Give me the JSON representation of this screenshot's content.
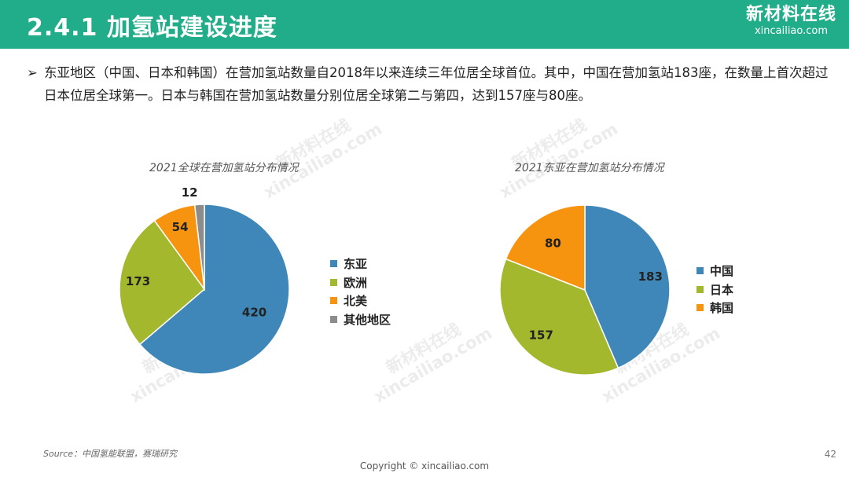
{
  "header": {
    "title": "2.4.1 加氢站建设进度"
  },
  "logo": {
    "name": "新材料在线",
    "domain": "xincailiao.com"
  },
  "bullet": {
    "mark": "➢",
    "text": "东亚地区（中国、日本和韩国）在营加氢站数量自2018年以来连续三年位居全球首位。其中，中国在营加氢站183座，在数量上首次超过日本位居全球第一。日本与韩国在营加氢站数量分别位居全球第二与第四，达到157座与80座。"
  },
  "chart_data": [
    {
      "type": "pie",
      "title": "2021全球在营加氢站分布情况",
      "categories": [
        "东亚",
        "欧洲",
        "北美",
        "其他地区"
      ],
      "values": [
        420,
        173,
        54,
        12
      ],
      "colors": [
        "#3f87b8",
        "#a4b82e",
        "#f6940f",
        "#8c8c8c"
      ],
      "legend": "right"
    },
    {
      "type": "pie",
      "title": "2021东亚在营加氢站分布情况",
      "categories": [
        "中国",
        "日本",
        "韩国"
      ],
      "values": [
        183,
        157,
        80
      ],
      "colors": [
        "#3f87b8",
        "#a4b82e",
        "#f6940f"
      ],
      "legend": "right"
    }
  ],
  "footer": {
    "source": "Source：中国氢能联盟，赛瑞研究",
    "copyright": "Copyright © xincailiao.com",
    "page": "42"
  },
  "watermark": {
    "cn": "新材料在线",
    "en": "xincailiao.com"
  }
}
